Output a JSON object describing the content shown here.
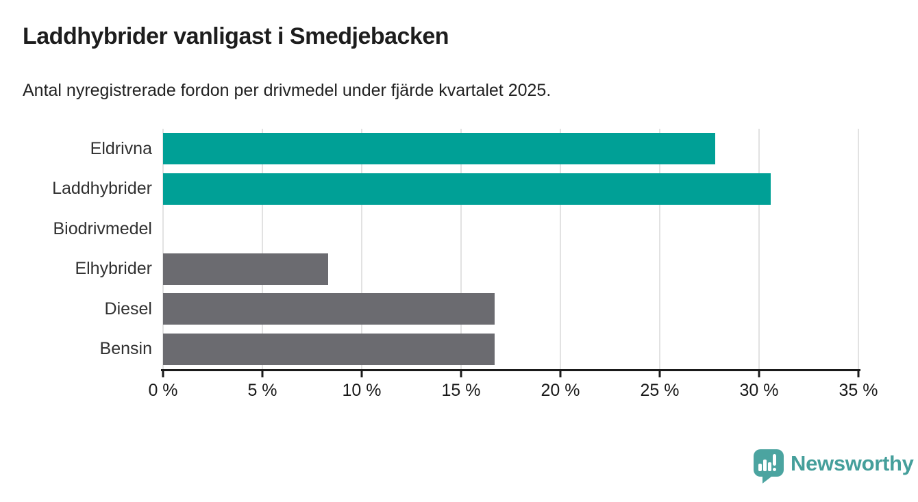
{
  "chart_data": {
    "type": "bar",
    "orientation": "horizontal",
    "title": "Laddhybrider vanligast i Smedjebacken",
    "subtitle": "Antal nyregistrerade fordon per drivmedel under fjärde kvartalet 2025.",
    "categories": [
      "Eldrivna",
      "Laddhybrider",
      "Biodrivmedel",
      "Elhybrider",
      "Diesel",
      "Bensin"
    ],
    "values": [
      27.8,
      30.6,
      0,
      8.3,
      16.7,
      16.7
    ],
    "unit": "%",
    "bar_colors": [
      "#00a096",
      "#00a096",
      "#6b6b70",
      "#6b6b70",
      "#6b6b70",
      "#6b6b70"
    ],
    "xlim": [
      0,
      35
    ],
    "x_ticks": [
      0,
      5,
      10,
      15,
      20,
      25,
      30,
      35
    ],
    "x_tick_labels": [
      "0 %",
      "5 %",
      "10 %",
      "15 %",
      "20 %",
      "25 %",
      "30 %",
      "35 %"
    ],
    "grid": true,
    "grid_color": "#e2e2e2",
    "axis_color": "#1a1a1a",
    "highlight_color": "#00a096",
    "default_bar_color": "#6b6b70",
    "legend": "none"
  },
  "footer": {
    "brand": "Newsworthy",
    "brand_color": "#459f9b",
    "logo_icon": "speech-bubble-bar-chart-icon"
  }
}
